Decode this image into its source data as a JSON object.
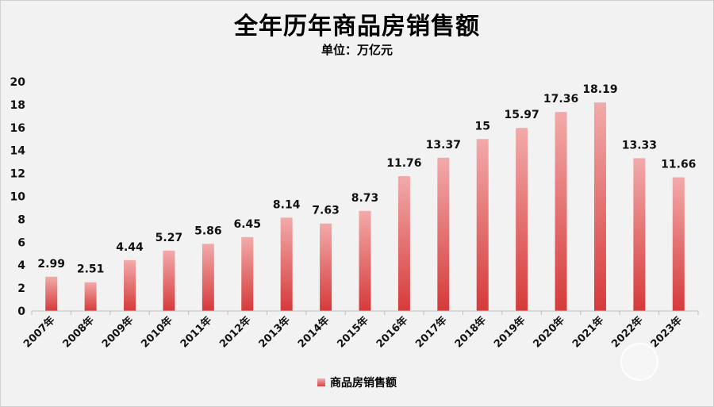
{
  "title": "全年历年商品房销售额",
  "subtitle": "单位：万亿元",
  "colors": {
    "bar_top": "#f2aaaa",
    "bar_bottom": "#d63a3a",
    "axis": "#bfbfbf"
  },
  "chart_data": {
    "type": "bar",
    "title": "全年历年商品房销售额",
    "subtitle": "单位：万亿元",
    "xlabel": "",
    "ylabel": "",
    "ylim": [
      0,
      20
    ],
    "yticks": [
      0,
      2,
      4,
      6,
      8,
      10,
      12,
      14,
      16,
      18,
      20
    ],
    "grid": false,
    "legend_position": "bottom",
    "categories": [
      "2007年",
      "2008年",
      "2009年",
      "2010年",
      "2011年",
      "2012年",
      "2013年",
      "2014年",
      "2015年",
      "2016年",
      "2017年",
      "2018年",
      "2019年",
      "2020年",
      "2021年",
      "2022年",
      "2023年"
    ],
    "series": [
      {
        "name": "商品房销售额",
        "values": [
          2.99,
          2.51,
          4.44,
          5.27,
          5.86,
          6.45,
          8.14,
          7.63,
          8.73,
          11.76,
          13.37,
          15,
          15.97,
          17.36,
          18.19,
          13.33,
          11.66
        ],
        "labels": [
          "2.99",
          "2.51",
          "4.44",
          "5.27",
          "5.86",
          "6.45",
          "8.14",
          "7.63",
          "8.73",
          "11.76",
          "13.37",
          "15",
          "15.97",
          "17.36",
          "18.19",
          "13.33",
          "11.66"
        ]
      }
    ]
  }
}
